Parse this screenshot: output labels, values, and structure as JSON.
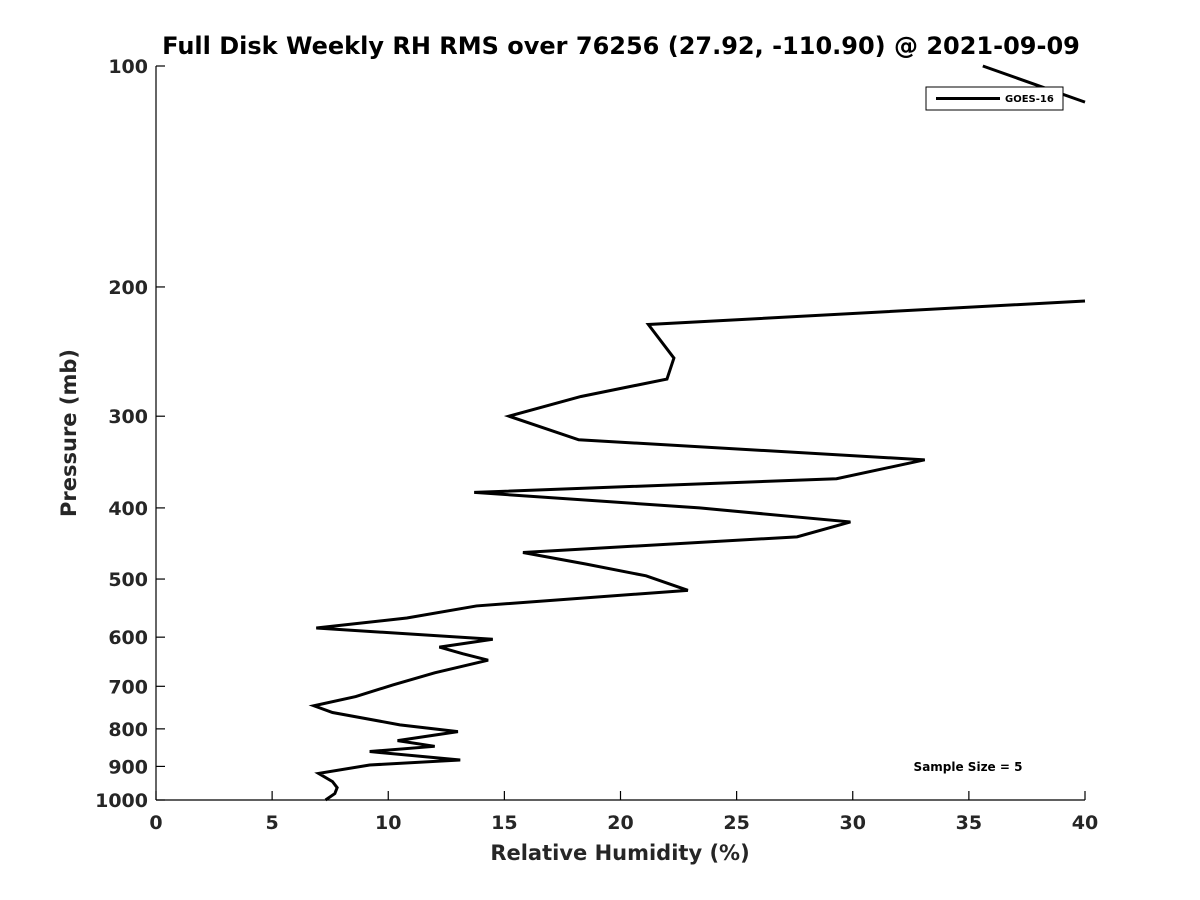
{
  "chart_data": {
    "type": "line",
    "title": "Full Disk Weekly RH RMS over 76256 (27.92, -110.90) @ 2021-09-09",
    "xlabel": "Relative Humidity (%)",
    "ylabel": "Pressure (mb)",
    "xlim": [
      0,
      40
    ],
    "ylim": [
      100,
      1000
    ],
    "yscale": "log",
    "ydirection": "reverse",
    "grid": false,
    "legend_position": "top-right",
    "xticks": [
      0,
      5,
      10,
      15,
      20,
      25,
      30,
      35,
      40
    ],
    "yticks": [
      100,
      200,
      300,
      400,
      500,
      600,
      700,
      800,
      900,
      1000
    ],
    "annotation": "Sample Size = 5",
    "series": [
      {
        "name": "GOES-16",
        "color": "#000000",
        "points": [
          [
            35.6,
            100
          ],
          [
            40,
            112
          ],
          [
            40,
            209
          ],
          [
            21.2,
            225
          ],
          [
            22.3,
            250
          ],
          [
            22.0,
            267
          ],
          [
            18.3,
            282
          ],
          [
            15.2,
            300
          ],
          [
            18.2,
            323
          ],
          [
            33.1,
            344
          ],
          [
            29.3,
            365
          ],
          [
            13.7,
            381
          ],
          [
            23.4,
            400
          ],
          [
            29.9,
            418
          ],
          [
            27.6,
            438
          ],
          [
            15.8,
            460
          ],
          [
            18.5,
            477
          ],
          [
            21.1,
            495
          ],
          [
            22.9,
            518
          ],
          [
            13.8,
            544
          ],
          [
            10.8,
            565
          ],
          [
            6.9,
            583
          ],
          [
            14.5,
            604
          ],
          [
            12.2,
            619
          ],
          [
            13.2,
            632
          ],
          [
            14.3,
            645
          ],
          [
            12.0,
            671
          ],
          [
            10.2,
            697
          ],
          [
            8.6,
            723
          ],
          [
            6.8,
            744
          ],
          [
            7.6,
            760
          ],
          [
            10.5,
            790
          ],
          [
            13.0,
            807
          ],
          [
            10.4,
            830
          ],
          [
            12.0,
            845
          ],
          [
            9.2,
            859
          ],
          [
            13.1,
            882
          ],
          [
            9.2,
            896
          ],
          [
            7.0,
            920
          ],
          [
            7.6,
            944
          ],
          [
            7.8,
            962
          ],
          [
            7.7,
            980
          ],
          [
            7.3,
            1000
          ]
        ]
      }
    ]
  }
}
